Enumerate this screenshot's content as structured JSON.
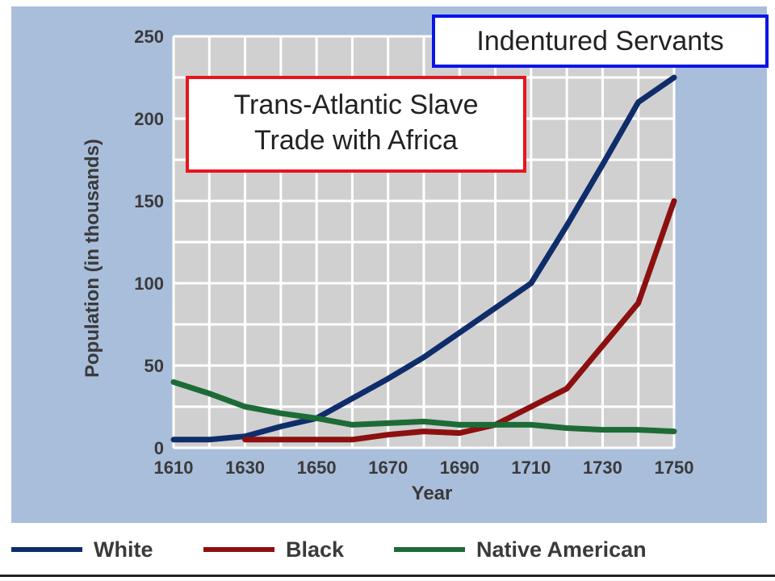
{
  "chart_data": {
    "type": "line",
    "title": "",
    "xlabel": "Year",
    "ylabel": "Population (in thousands)",
    "xlim": [
      1610,
      1750
    ],
    "ylim": [
      0,
      250
    ],
    "x_ticks": [
      1610,
      1630,
      1650,
      1670,
      1690,
      1710,
      1730,
      1750
    ],
    "y_ticks": [
      0,
      50,
      100,
      150,
      200,
      250
    ],
    "grid": true,
    "legend_position": "bottom",
    "series": [
      {
        "name": "White",
        "color": "#0f2d6b",
        "points": [
          [
            1610,
            5
          ],
          [
            1620,
            5
          ],
          [
            1630,
            7
          ],
          [
            1640,
            13
          ],
          [
            1650,
            18
          ],
          [
            1660,
            30
          ],
          [
            1670,
            42
          ],
          [
            1680,
            55
          ],
          [
            1690,
            70
          ],
          [
            1700,
            85
          ],
          [
            1710,
            100
          ],
          [
            1720,
            135
          ],
          [
            1730,
            172
          ],
          [
            1740,
            210
          ],
          [
            1750,
            225
          ]
        ]
      },
      {
        "name": "Black",
        "color": "#8c1010",
        "points": [
          [
            1630,
            5
          ],
          [
            1640,
            5
          ],
          [
            1650,
            5
          ],
          [
            1660,
            5
          ],
          [
            1670,
            8
          ],
          [
            1680,
            10
          ],
          [
            1690,
            9
          ],
          [
            1700,
            14
          ],
          [
            1710,
            25
          ],
          [
            1720,
            36
          ],
          [
            1730,
            62
          ],
          [
            1740,
            88
          ],
          [
            1750,
            150
          ]
        ]
      },
      {
        "name": "Native American",
        "color": "#1d6b36",
        "points": [
          [
            1610,
            40
          ],
          [
            1620,
            33
          ],
          [
            1630,
            25
          ],
          [
            1640,
            21
          ],
          [
            1650,
            18
          ],
          [
            1660,
            14
          ],
          [
            1670,
            15
          ],
          [
            1680,
            16
          ],
          [
            1690,
            14
          ],
          [
            1700,
            14
          ],
          [
            1710,
            14
          ],
          [
            1720,
            12
          ],
          [
            1730,
            11
          ],
          [
            1740,
            11
          ],
          [
            1750,
            10
          ]
        ]
      }
    ]
  },
  "callouts": {
    "indentured": "Indentured Servants",
    "slave_trade_line1": "Trans-Atlantic Slave",
    "slave_trade_line2": "Trade with Africa"
  },
  "colors": {
    "panel_background": "#a9bedb",
    "plot_background": "#d0d0d0",
    "indentured_border": "#0a14e6",
    "slave_trade_border": "#e8141e"
  }
}
